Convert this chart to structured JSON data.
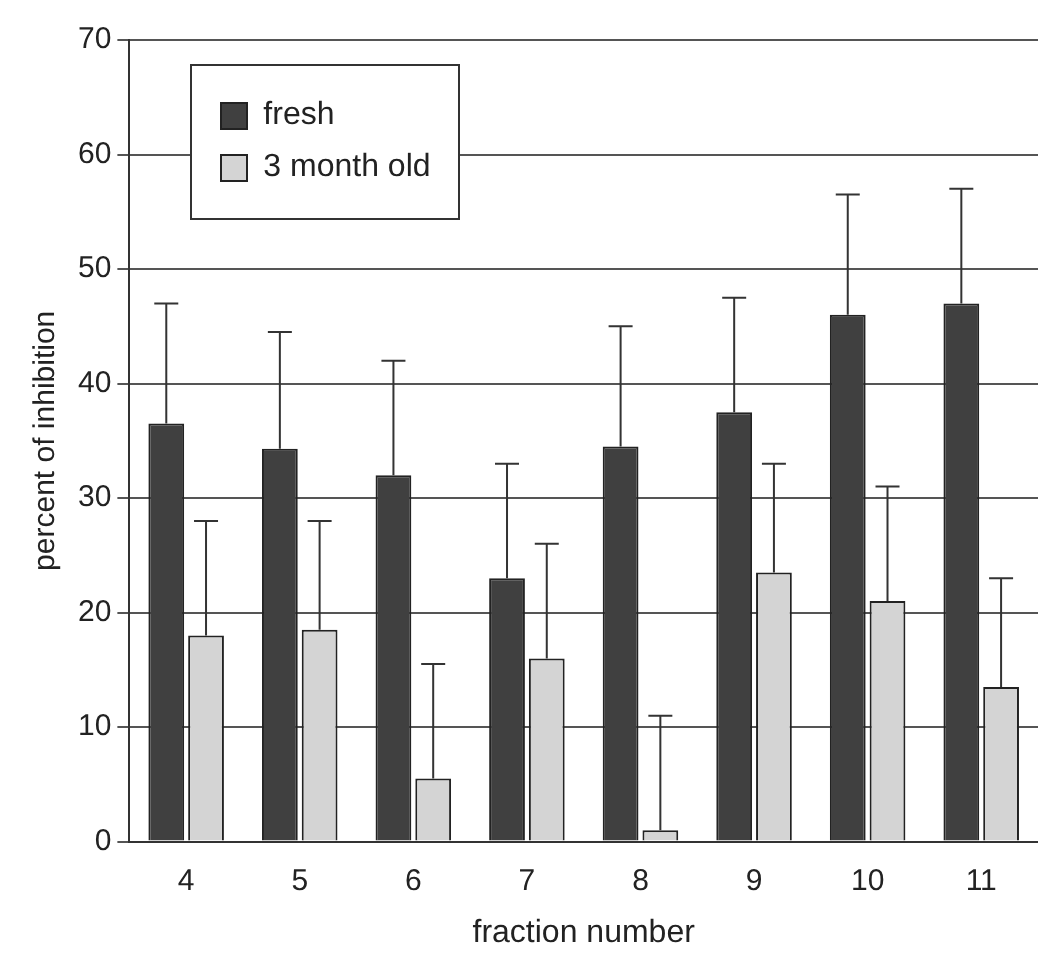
{
  "chart_data": {
    "type": "bar",
    "xlabel": "fraction number",
    "ylabel": "percent of inhibition",
    "categories": [
      "4",
      "5",
      "6",
      "7",
      "8",
      "9",
      "10",
      "11"
    ],
    "series": [
      {
        "name": "fresh",
        "color": "#404040",
        "values": [
          36.5,
          34.3,
          32,
          23,
          34.5,
          37.5,
          46,
          47
        ],
        "errors": [
          [
            36.5,
            47
          ],
          [
            34.3,
            44.5
          ],
          [
            32,
            42
          ],
          [
            23,
            33
          ],
          [
            34.5,
            45
          ],
          [
            37.5,
            47.5
          ],
          [
            46,
            56.5
          ],
          [
            47,
            57
          ]
        ]
      },
      {
        "name": "3 month old",
        "color": "#d4d4d4",
        "values": [
          18,
          18.5,
          5.5,
          16,
          1,
          23.5,
          21,
          13.5
        ],
        "errors": [
          [
            18,
            28
          ],
          [
            18.5,
            28
          ],
          [
            5.5,
            15.5
          ],
          [
            16,
            26
          ],
          [
            1,
            11
          ],
          [
            23.5,
            33
          ],
          [
            21,
            31
          ],
          [
            13.5,
            23
          ]
        ]
      }
    ],
    "ylim": [
      0,
      70
    ],
    "yticks": [
      0,
      10,
      20,
      30,
      40,
      50,
      60,
      70
    ],
    "grid": "y",
    "legend": "top left"
  }
}
